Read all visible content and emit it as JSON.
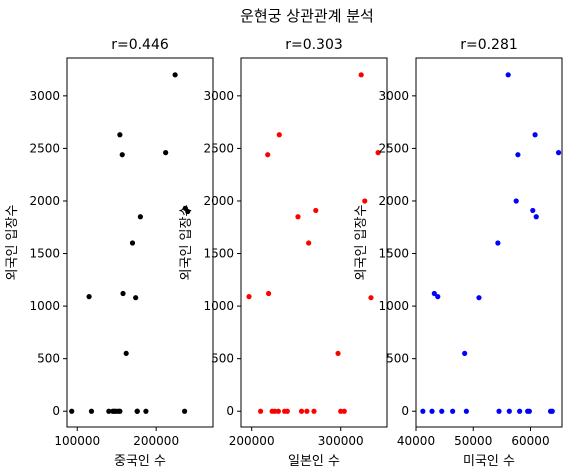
{
  "title": "운현궁 상관관계 분석",
  "chart_data": [
    {
      "type": "scatter",
      "title": "r=0.446",
      "xlabel": "중국인 수",
      "ylabel": "외국인 입장수",
      "color": "#000000",
      "xlim": [
        87000,
        272000
      ],
      "ylim": [
        -150,
        3360
      ],
      "xticks": [
        100000,
        200000
      ],
      "yticks": [
        0,
        500,
        1000,
        1500,
        2000,
        2500,
        3000
      ],
      "x": [
        93000,
        115000,
        118000,
        140000,
        145000,
        147000,
        149000,
        152000,
        154000,
        154000,
        157000,
        158000,
        162000,
        170000,
        174000,
        176000,
        176000,
        180000,
        187000,
        212000,
        224000,
        236000,
        237000,
        240000
      ],
      "y": [
        0,
        1090,
        0,
        0,
        0,
        0,
        0,
        0,
        2630,
        0,
        2440,
        1120,
        550,
        1600,
        1080,
        0,
        0,
        1850,
        0,
        2460,
        3200,
        0,
        1930,
        1900
      ]
    },
    {
      "type": "scatter",
      "title": "r=0.303",
      "xlabel": "일본인 수",
      "ylabel": "외국인 입장수",
      "color": "#ff0000",
      "xlim": [
        188000,
        352000
      ],
      "ylim": [
        -150,
        3360
      ],
      "xticks": [
        200000,
        300000
      ],
      "yticks": [
        0,
        500,
        1000,
        1500,
        2000,
        2500,
        3000
      ],
      "x": [
        197000,
        210000,
        218000,
        219000,
        223000,
        226000,
        230000,
        231000,
        237000,
        240000,
        252000,
        256000,
        262000,
        264000,
        270000,
        272000,
        297000,
        300000,
        304000,
        323000,
        327000,
        334000,
        342000
      ],
      "y": [
        1090,
        0,
        2440,
        1120,
        0,
        0,
        0,
        2630,
        0,
        0,
        1850,
        0,
        0,
        1600,
        0,
        1910,
        550,
        0,
        0,
        3200,
        2000,
        1080,
        2460
      ]
    },
    {
      "type": "scatter",
      "title": "r=0.281",
      "xlabel": "미국인 수",
      "ylabel": "외국인 입장수",
      "color": "#0000ff",
      "xlim": [
        40000,
        65500
      ],
      "ylim": [
        -150,
        3360
      ],
      "xticks": [
        40000,
        50000,
        60000
      ],
      "yticks": [
        0,
        500,
        1000,
        1500,
        2000,
        2500,
        3000
      ],
      "x": [
        41200,
        42800,
        43200,
        43800,
        44500,
        46400,
        48500,
        48800,
        51000,
        54300,
        54500,
        56100,
        56300,
        57500,
        57800,
        58100,
        59500,
        59800,
        60400,
        60800,
        61000,
        63500,
        63800,
        64900
      ],
      "y": [
        0,
        0,
        1120,
        1090,
        0,
        0,
        550,
        0,
        1080,
        1600,
        0,
        3200,
        0,
        2000,
        2440,
        0,
        0,
        0,
        1910,
        2630,
        1850,
        0,
        0,
        2460
      ]
    }
  ]
}
